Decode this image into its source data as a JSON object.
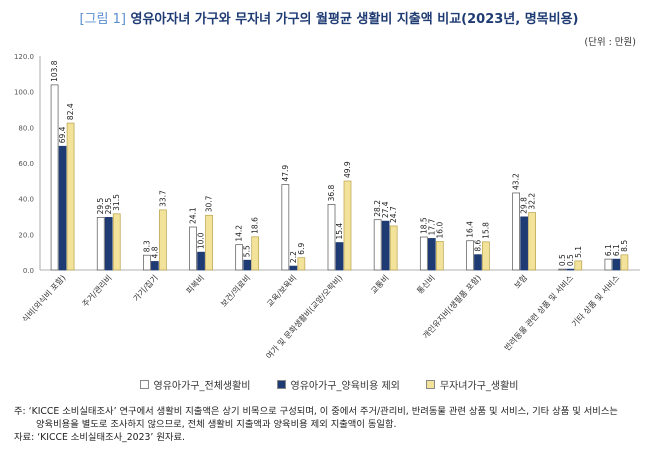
{
  "header": {
    "figure_label": "[그림 1]",
    "title": "영유아자녀 가구와 무자녀 가구의 월평균 생활비 지출액 비교(2023년, 명목비용)",
    "unit": "(단위 : 만원)"
  },
  "chart_data": {
    "type": "bar",
    "categories": [
      "식비(외식비 포함)",
      "주거/관리비",
      "가기/집기",
      "피복비",
      "보건/의료비",
      "교육/보육비",
      "여가 및 문화생활비(교양/오락비)",
      "교통비",
      "통신비",
      "개인유지비(생필품 포함)",
      "보험",
      "반려동물 관련 상품 및 서비스",
      "기타 상품 및 서비스"
    ],
    "series": [
      {
        "name": "영유아가구_전체생활비",
        "color": "#ffffff",
        "values": [
          103.8,
          29.5,
          8.3,
          24.1,
          14.2,
          47.9,
          36.8,
          28.2,
          18.5,
          16.4,
          43.2,
          0.5,
          6.1
        ]
      },
      {
        "name": "영유아가구_양육비용 제외",
        "color": "#1f3b73",
        "values": [
          69.4,
          29.5,
          4.8,
          10.0,
          5.5,
          2.2,
          15.4,
          27.4,
          17.7,
          8.6,
          29.8,
          0.5,
          6.1
        ]
      },
      {
        "name": "무자녀가구_생활비",
        "color": "#f2e29a",
        "values": [
          82.4,
          31.5,
          33.7,
          30.7,
          18.6,
          6.9,
          49.9,
          24.7,
          16.0,
          15.8,
          32.2,
          5.1,
          8.5
        ]
      }
    ],
    "y_ticks": [
      "0.0",
      "20.0",
      "40.0",
      "60.0",
      "80.0",
      "100.0",
      "120.0"
    ],
    "ylim": [
      0,
      120
    ],
    "grid": false,
    "legend": "bottom"
  },
  "notes": {
    "line1": "주: ‘KICCE 소비실태조사’ 연구에서 생활비 지출액은 상기 비목으로 구성되며, 이 중에서 주거/관리비, 반려동물 관련 상품 및 서비스, 기타 상품 및 서비스는",
    "line2": "양육비용을 별도로 조사하지 않으므로, 전체 생활비 지출액과 양육비용 제외 지출액이 동일함.",
    "line3": "자료: ‘KICCE 소비실태조사_2023’ 원자료."
  }
}
